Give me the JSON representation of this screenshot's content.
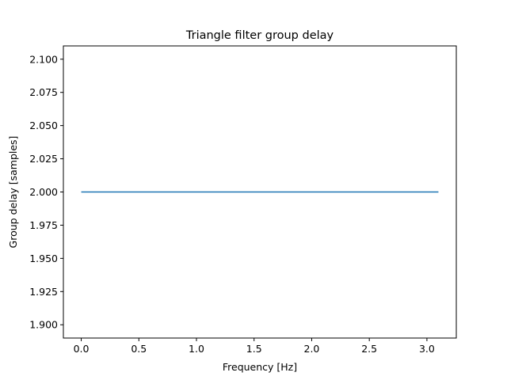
{
  "chart_data": {
    "type": "line",
    "title": "Triangle filter group delay",
    "xlabel": "Frequency [Hz]",
    "ylabel": "Group delay [samples]",
    "xlim": [
      -0.155,
      3.255
    ],
    "ylim": [
      1.89,
      2.11
    ],
    "xticks": [
      0.0,
      0.5,
      1.0,
      1.5,
      2.0,
      2.5,
      3.0
    ],
    "xtick_labels": [
      "0.0",
      "0.5",
      "1.0",
      "1.5",
      "2.0",
      "2.5",
      "3.0"
    ],
    "yticks": [
      1.9,
      1.925,
      1.95,
      1.975,
      2.0,
      2.025,
      2.05,
      2.075,
      2.1
    ],
    "ytick_labels": [
      "1.900",
      "1.925",
      "1.950",
      "1.975",
      "2.000",
      "2.025",
      "2.050",
      "2.075",
      "2.100"
    ],
    "grid": false,
    "series": [
      {
        "color": "#1f77b4",
        "x": [
          0.0,
          3.1
        ],
        "y": [
          2.0,
          2.0
        ]
      }
    ]
  }
}
